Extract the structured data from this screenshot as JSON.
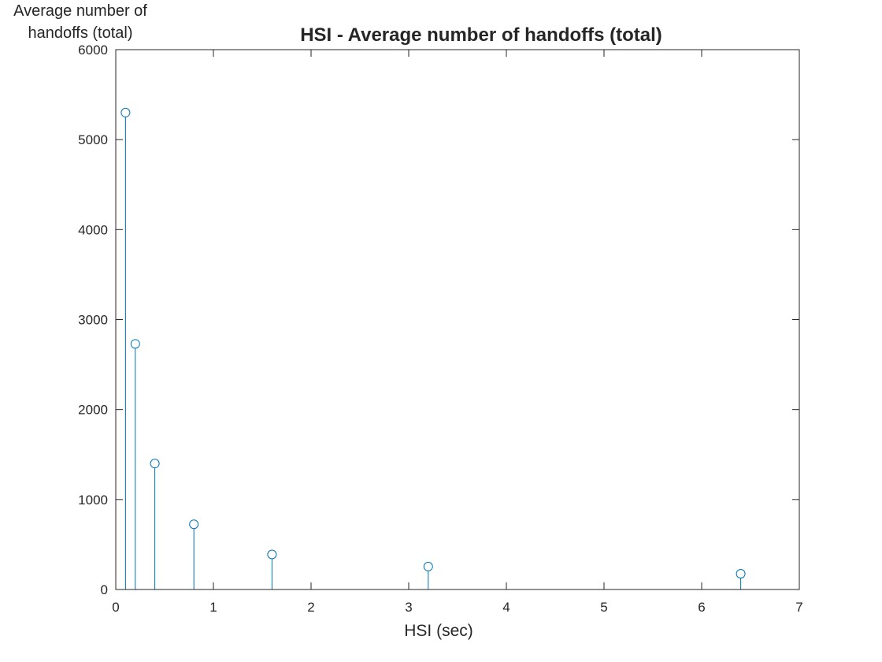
{
  "chart_data": {
    "type": "stem",
    "title": "HSI - Average number of handoffs (total)",
    "xlabel": "HSI (sec)",
    "ylabel_lines": [
      "Average number of",
      "handoffs (total)"
    ],
    "xlim": [
      0,
      7
    ],
    "ylim": [
      0,
      6000
    ],
    "xticks": [
      0,
      1,
      2,
      3,
      4,
      5,
      6,
      7
    ],
    "yticks": [
      0,
      1000,
      2000,
      3000,
      4000,
      5000,
      6000
    ],
    "grid": false,
    "series": [
      {
        "color": "#0072bd",
        "marker": "circle-open",
        "x": [
          0.1,
          0.2,
          0.4,
          0.8,
          1.6,
          3.2,
          6.4
        ],
        "y": [
          5300,
          2730,
          1400,
          725,
          390,
          255,
          175
        ]
      }
    ]
  }
}
